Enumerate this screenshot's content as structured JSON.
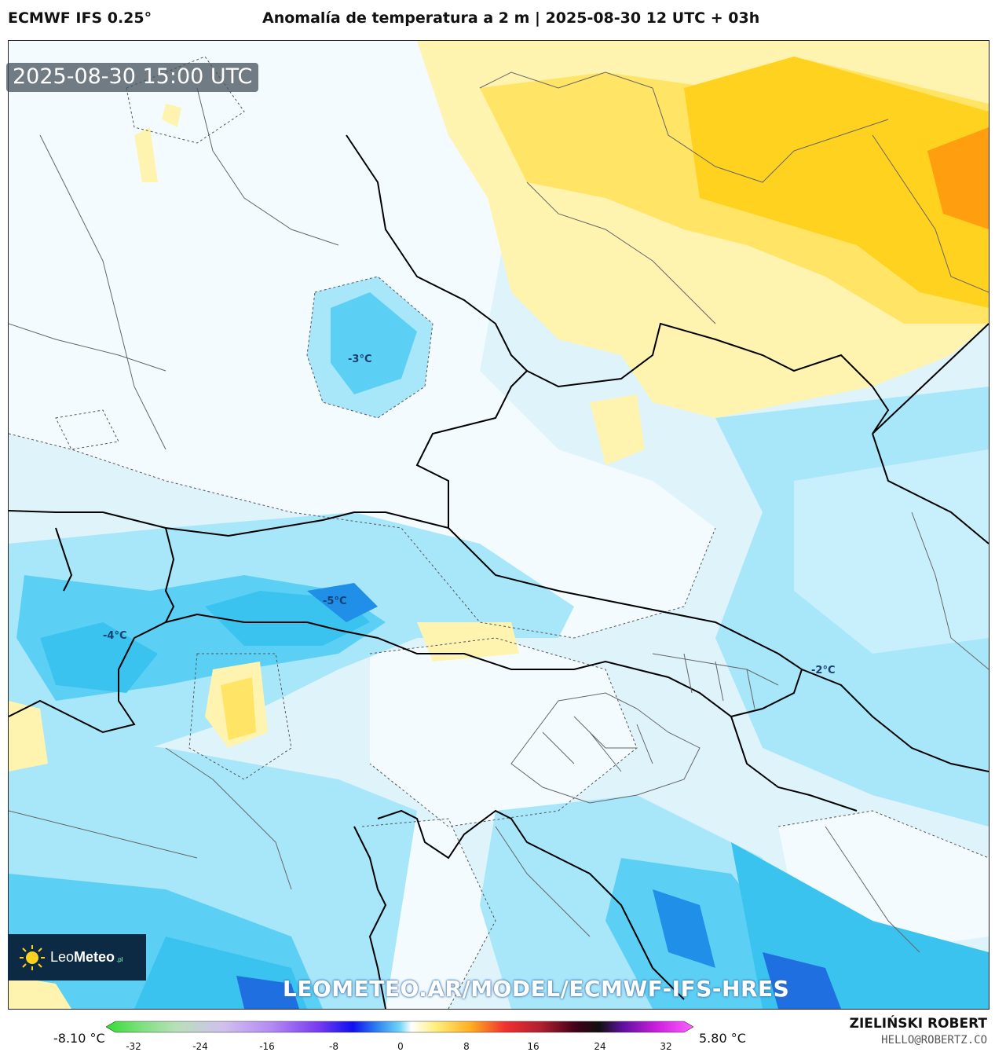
{
  "header": {
    "model": "ECMWF IFS 0.25°",
    "title": "Anomalía de temperatura a 2 m | 2025-08-30 12 UTC + 03h"
  },
  "valid_time": "2025-08-30 15:00 UTC",
  "contour_labels": [
    "-3°C",
    "-5°C",
    "-4°C",
    "-2°C"
  ],
  "logo": {
    "name_light": "Leo",
    "name_bold": "Meteo",
    "suffix": ".pl",
    "icon": "sun-icon"
  },
  "watermark": "LEOMETEO.AR/MODEL/ECMWF-IFS-HRES",
  "legend": {
    "min": "-8.10 °C",
    "max": "5.80 °C",
    "ticks": [
      "-32",
      "-24",
      "-16",
      "-8",
      "0",
      "8",
      "16",
      "24",
      "32"
    ]
  },
  "author": "ZIELIŃSKI ROBERT",
  "email": "HELLO@ROBERTZ.CO",
  "colors": {
    "cold_deep": "#1f6fe0",
    "cold": "#3bc3f0",
    "cool": "#a8e6fa",
    "neutral": "#ffffff",
    "warm_light": "#fff3b0",
    "warm": "#ffd21f",
    "warm_deep": "#ff9f10"
  }
}
